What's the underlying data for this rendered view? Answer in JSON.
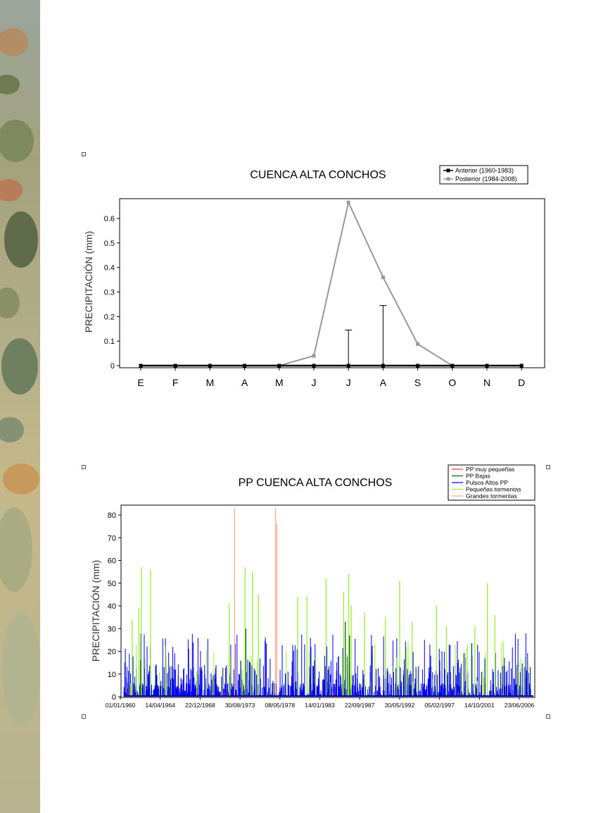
{
  "chart_data": [
    {
      "type": "line",
      "title": "CUENCA ALTA CONCHOS",
      "xlabel": "",
      "ylabel": "PRECIPITACIÓN (mm)",
      "categories": [
        "E",
        "F",
        "M",
        "A",
        "M",
        "J",
        "J",
        "A",
        "S",
        "O",
        "N",
        "D"
      ],
      "ylim": [
        0,
        0.7
      ],
      "yticks": [
        "0",
        "0.1",
        "0.2",
        "0.3",
        "0.4",
        "0.5",
        "0.6"
      ],
      "legend_position": "top-right",
      "series": [
        {
          "name": "Anterior (1960-1983)",
          "color": "#000000",
          "values": [
            0,
            0,
            0,
            0,
            0,
            0,
            0,
            0,
            0,
            0,
            0,
            0
          ],
          "error_upper": [
            0,
            0,
            0,
            0,
            0,
            0,
            0.145,
            0.245,
            0,
            0,
            0,
            0
          ]
        },
        {
          "name": "Posterior (1984-2008)",
          "color": "#999999",
          "values": [
            0,
            0,
            0,
            0,
            0,
            0.04,
            0.665,
            0.36,
            0.088,
            0,
            0,
            0
          ]
        }
      ]
    },
    {
      "type": "bar",
      "title": "PP CUENCA ALTA CONCHOS",
      "xlabel": "",
      "ylabel": "PRECIPITACIÓN (mm)",
      "ylim": [
        0,
        84
      ],
      "yticks": [
        "0",
        "10",
        "20",
        "30",
        "40",
        "50",
        "60",
        "70",
        "80"
      ],
      "x_tick_labels": [
        "01/01/1960",
        "14/04/1964",
        "22/12/1968",
        "30/08/1973",
        "08/05/1978",
        "14/01/1983",
        "22/09/1987",
        "30/05/1992",
        "05/02/1997",
        "14/10/2001",
        "23/06/2006"
      ],
      "x_range_years": [
        1960,
        2009
      ],
      "legend_position": "top-right",
      "series": [
        {
          "name": "PP muy pequeñas",
          "color": "#ff3333"
        },
        {
          "name": "PP Bajas",
          "color": "#006600"
        },
        {
          "name": "Pulsos Altos PP",
          "color": "#0000ee"
        },
        {
          "name": "Pequeñas tormentas",
          "color": "#99ee33"
        },
        {
          "name": "Grandes tormentas",
          "color": "#ffaa88"
        }
      ],
      "events": {
        "Grandes tormentas": [
          [
            1973.25,
            83
          ],
          [
            1978.15,
            83
          ],
          [
            1978.3,
            76
          ]
        ],
        "Pequeñas tormentas": [
          [
            1961.0,
            34
          ],
          [
            1961.8,
            39
          ],
          [
            1962.1,
            57
          ],
          [
            1963.2,
            56
          ],
          [
            1972.6,
            41
          ],
          [
            1974.5,
            57
          ],
          [
            1975.4,
            55
          ],
          [
            1976.1,
            45
          ],
          [
            1980.8,
            44
          ],
          [
            1981.9,
            44
          ],
          [
            1984.2,
            52
          ],
          [
            1986.3,
            46
          ],
          [
            1986.9,
            54
          ],
          [
            1987.2,
            40
          ],
          [
            1988.8,
            37
          ],
          [
            1991.3,
            35
          ],
          [
            1993.0,
            51
          ],
          [
            1994.5,
            33
          ],
          [
            1997.4,
            40
          ],
          [
            1998.6,
            31
          ],
          [
            2002.0,
            31
          ],
          [
            2003.5,
            50
          ],
          [
            2004.4,
            36
          ]
        ],
        "PP Bajas": [
          [
            1962.0,
            16
          ],
          [
            1974.6,
            30
          ],
          [
            1986.5,
            33
          ],
          [
            1987.0,
            27
          ]
        ],
        "PP muy pequeñas": [
          [
            1960.5,
            3
          ],
          [
            1972.0,
            2
          ],
          [
            1985.0,
            2
          ],
          [
            2000.0,
            2
          ]
        ]
      }
    }
  ]
}
